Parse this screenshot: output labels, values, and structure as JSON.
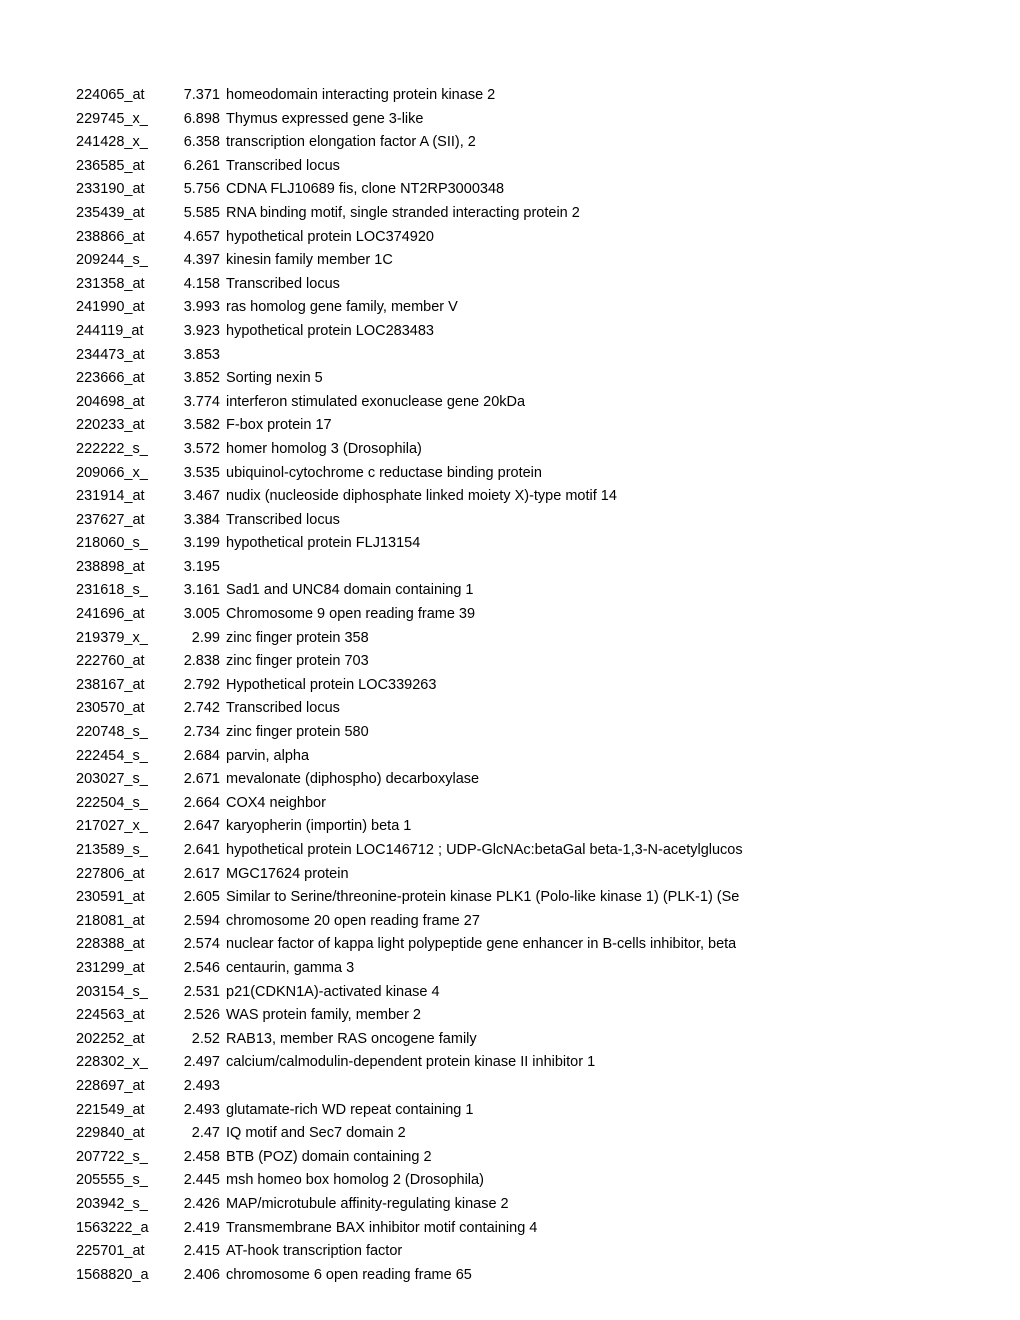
{
  "rows": [
    {
      "id": "224065_at",
      "val": "7.371",
      "desc": "homeodomain interacting protein kinase 2"
    },
    {
      "id": "229745_x_",
      "val": "6.898",
      "desc": "Thymus expressed gene 3-like"
    },
    {
      "id": "241428_x_",
      "val": "6.358",
      "desc": "transcription elongation factor A (SII), 2"
    },
    {
      "id": "236585_at",
      "val": "6.261",
      "desc": "Transcribed locus"
    },
    {
      "id": "233190_at",
      "val": "5.756",
      "desc": "CDNA FLJ10689 fis, clone NT2RP3000348"
    },
    {
      "id": "235439_at",
      "val": "5.585",
      "desc": "RNA binding motif, single stranded interacting protein 2"
    },
    {
      "id": "238866_at",
      "val": "4.657",
      "desc": "hypothetical protein LOC374920"
    },
    {
      "id": "209244_s_",
      "val": "4.397",
      "desc": "kinesin family member 1C"
    },
    {
      "id": "231358_at",
      "val": "4.158",
      "desc": "Transcribed locus"
    },
    {
      "id": "241990_at",
      "val": "3.993",
      "desc": "ras homolog gene family, member V"
    },
    {
      "id": "244119_at",
      "val": "3.923",
      "desc": "hypothetical protein LOC283483"
    },
    {
      "id": "234473_at",
      "val": "3.853",
      "desc": ""
    },
    {
      "id": "223666_at",
      "val": "3.852",
      "desc": "Sorting nexin 5"
    },
    {
      "id": "204698_at",
      "val": "3.774",
      "desc": "interferon stimulated exonuclease gene 20kDa"
    },
    {
      "id": "220233_at",
      "val": "3.582",
      "desc": "F-box protein 17"
    },
    {
      "id": "222222_s_",
      "val": "3.572",
      "desc": "homer homolog 3 (Drosophila)"
    },
    {
      "id": "209066_x_",
      "val": "3.535",
      "desc": "ubiquinol-cytochrome c reductase binding protein"
    },
    {
      "id": "231914_at",
      "val": "3.467",
      "desc": "nudix (nucleoside diphosphate linked moiety X)-type motif 14"
    },
    {
      "id": "237627_at",
      "val": "3.384",
      "desc": "Transcribed locus"
    },
    {
      "id": "218060_s_",
      "val": "3.199",
      "desc": "hypothetical protein FLJ13154"
    },
    {
      "id": "238898_at",
      "val": "3.195",
      "desc": ""
    },
    {
      "id": "231618_s_",
      "val": "3.161",
      "desc": "Sad1 and UNC84 domain containing 1"
    },
    {
      "id": "241696_at",
      "val": "3.005",
      "desc": "Chromosome 9 open reading frame 39"
    },
    {
      "id": "219379_x_",
      "val": "2.99",
      "desc": "zinc finger protein 358"
    },
    {
      "id": "222760_at",
      "val": "2.838",
      "desc": "zinc finger protein 703"
    },
    {
      "id": "238167_at",
      "val": "2.792",
      "desc": "Hypothetical protein LOC339263"
    },
    {
      "id": "230570_at",
      "val": "2.742",
      "desc": "Transcribed locus"
    },
    {
      "id": "220748_s_",
      "val": "2.734",
      "desc": "zinc finger protein 580"
    },
    {
      "id": "222454_s_",
      "val": "2.684",
      "desc": "parvin, alpha"
    },
    {
      "id": "203027_s_",
      "val": "2.671",
      "desc": "mevalonate (diphospho) decarboxylase"
    },
    {
      "id": "222504_s_",
      "val": "2.664",
      "desc": "COX4 neighbor"
    },
    {
      "id": "217027_x_",
      "val": "2.647",
      "desc": "karyopherin (importin) beta 1"
    },
    {
      "id": "213589_s_",
      "val": "2.641",
      "desc": "hypothetical protein LOC146712 ; UDP-GlcNAc:betaGal beta-1,3-N-acetylglucos"
    },
    {
      "id": "227806_at",
      "val": "2.617",
      "desc": "MGC17624 protein"
    },
    {
      "id": "230591_at",
      "val": "2.605",
      "desc": "Similar to Serine/threonine-protein kinase PLK1 (Polo-like kinase 1) (PLK-1) (Se"
    },
    {
      "id": "218081_at",
      "val": "2.594",
      "desc": "chromosome 20 open reading frame 27"
    },
    {
      "id": "228388_at",
      "val": "2.574",
      "desc": "nuclear factor of kappa light polypeptide gene enhancer in B-cells inhibitor, beta"
    },
    {
      "id": "231299_at",
      "val": "2.546",
      "desc": "centaurin, gamma 3"
    },
    {
      "id": "203154_s_",
      "val": "2.531",
      "desc": "p21(CDKN1A)-activated kinase 4"
    },
    {
      "id": "224563_at",
      "val": "2.526",
      "desc": "WAS protein family, member 2"
    },
    {
      "id": "202252_at",
      "val": "2.52",
      "desc": "RAB13, member RAS oncogene family"
    },
    {
      "id": "228302_x_",
      "val": "2.497",
      "desc": "calcium/calmodulin-dependent protein kinase II inhibitor 1"
    },
    {
      "id": "228697_at",
      "val": "2.493",
      "desc": ""
    },
    {
      "id": "221549_at",
      "val": "2.493",
      "desc": "glutamate-rich WD repeat containing 1"
    },
    {
      "id": "229840_at",
      "val": "2.47",
      "desc": "IQ motif and Sec7 domain 2"
    },
    {
      "id": "207722_s_",
      "val": "2.458",
      "desc": "BTB (POZ) domain containing 2"
    },
    {
      "id": "205555_s_",
      "val": "2.445",
      "desc": "msh homeo box homolog 2 (Drosophila)"
    },
    {
      "id": "203942_s_",
      "val": "2.426",
      "desc": "MAP/microtubule affinity-regulating kinase 2"
    },
    {
      "id": "1563222_a",
      "val": "2.419",
      "desc": "Transmembrane BAX inhibitor motif containing 4"
    },
    {
      "id": "225701_at",
      "val": "2.415",
      "desc": "AT-hook transcription factor"
    },
    {
      "id": "1568820_a",
      "val": "2.406",
      "desc": "chromosome 6 open reading frame 65"
    }
  ]
}
